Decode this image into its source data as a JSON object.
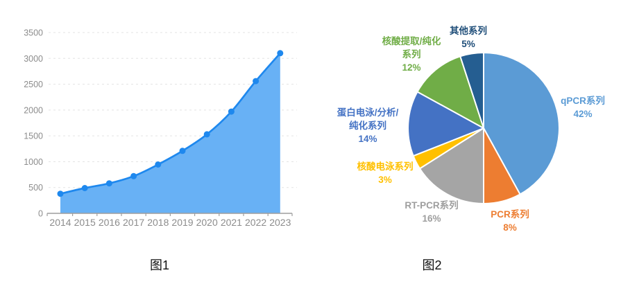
{
  "page": {
    "background": "#ffffff"
  },
  "figure1": {
    "caption": "图1"
  },
  "figure2": {
    "caption": "图2"
  },
  "chart_data": [
    {
      "id": "figure1",
      "type": "area",
      "title": "",
      "xlabel": "",
      "ylabel": "",
      "legend": "none",
      "grid": "horizontal-dashed",
      "x": [
        "2014",
        "2015",
        "2016",
        "2017",
        "2018",
        "2019",
        "2020",
        "2021",
        "2022",
        "2023"
      ],
      "values": [
        380,
        490,
        580,
        720,
        945,
        1210,
        1530,
        1970,
        2560,
        3100
      ],
      "ylim": [
        0,
        3500
      ],
      "yticks": [
        0,
        500,
        1000,
        1500,
        2000,
        2500,
        3000,
        3500
      ],
      "colors": {
        "line": "#1E88EE",
        "fill": "#68B1F5",
        "dot": "#1E88EE",
        "axis": "#9E9E9E",
        "grid": "#E3E3E3",
        "tick_label": "#8C8C8C"
      }
    },
    {
      "id": "figure2",
      "type": "pie",
      "title": "",
      "legend": "none",
      "start_angle_deg": 0,
      "direction": "clockwise",
      "slices": [
        {
          "label": "qPCR系列",
          "pct": 42,
          "color": "#5B9BD5",
          "label_color": "#5B9BD5",
          "label_lines": [
            "qPCR系列",
            "42%"
          ]
        },
        {
          "label": "PCR系列",
          "pct": 8,
          "color": "#ED7D31",
          "label_color": "#ED7D31",
          "label_lines": [
            "PCR系列",
            "8%"
          ]
        },
        {
          "label": "RT-PCR系列",
          "pct": 16,
          "color": "#A5A5A5",
          "label_color": "#9E9E9E",
          "label_lines": [
            "RT-PCR系列",
            "16%"
          ]
        },
        {
          "label": "核酸电泳系列",
          "pct": 3,
          "color": "#FFC000",
          "label_color": "#FFC000",
          "label_lines": [
            "核酸电泳系列",
            "3%"
          ]
        },
        {
          "label": "蛋白电泳/分析/纯化系列",
          "pct": 14,
          "color": "#4472C4",
          "label_color": "#4472C4",
          "label_lines": [
            "蛋白电泳/分析/",
            "纯化系列",
            "14%"
          ]
        },
        {
          "label": "核酸提取/纯化系列",
          "pct": 12,
          "color": "#70AD47",
          "label_color": "#70AD47",
          "label_lines": [
            "核酸提取/纯化",
            "系列",
            "12%"
          ]
        },
        {
          "label": "其他系列",
          "pct": 5,
          "color": "#255E91",
          "label_color": "#1F4E79",
          "label_lines": [
            "其他系列",
            "5%"
          ]
        }
      ]
    }
  ]
}
